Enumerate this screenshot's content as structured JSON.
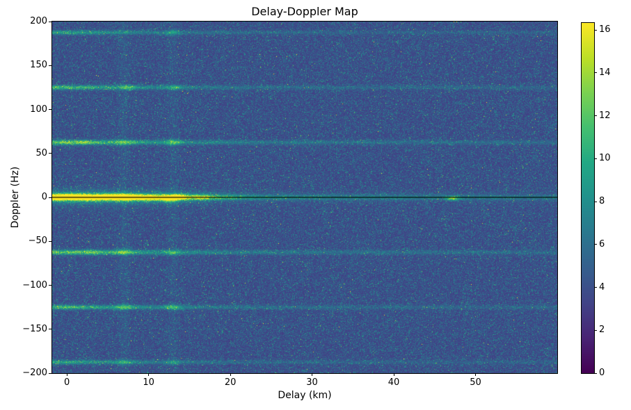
{
  "chart_data": {
    "type": "heatmap",
    "title": "Delay-Doppler Map",
    "xlabel": "Delay (km)",
    "ylabel": "Doppler (Hz)",
    "xlim": [
      -1.8,
      60
    ],
    "ylim": [
      -200,
      200
    ],
    "x_ticks": [
      0,
      10,
      20,
      30,
      40,
      50
    ],
    "y_ticks": [
      200,
      150,
      100,
      50,
      0,
      -50,
      -100,
      -150,
      -200
    ],
    "colorbar": {
      "vmin": 0,
      "vmax": 16.33,
      "ticks": [
        0,
        2,
        4,
        6,
        8,
        10,
        12,
        14,
        16
      ]
    },
    "colormap": {
      "name": "viridis",
      "stops": [
        [
          0.0,
          "#440154"
        ],
        [
          0.1,
          "#482475"
        ],
        [
          0.2,
          "#414487"
        ],
        [
          0.3,
          "#355f8d"
        ],
        [
          0.4,
          "#2a788e"
        ],
        [
          0.5,
          "#21918c"
        ],
        [
          0.6,
          "#22a884"
        ],
        [
          0.7,
          "#44bf70"
        ],
        [
          0.8,
          "#7ad151"
        ],
        [
          0.9,
          "#bddf26"
        ],
        [
          1.0,
          "#fde725"
        ]
      ]
    },
    "noise": {
      "base": 2.9,
      "exp_scale": 1.45,
      "seed": 42
    },
    "dc_line": {
      "doppler": 0,
      "color": "#000000"
    },
    "stripes": [
      {
        "kind": "main",
        "doppler": 0,
        "width_hz": 2.2,
        "peak": 12.5,
        "plateau_end_km": 15,
        "edge_km": 3,
        "tail": 3.0,
        "tail_decay_km": 40,
        "floor": 1.5
      },
      {
        "kind": "main",
        "doppler": 0,
        "width_hz": 5.5,
        "peak": 4.0,
        "plateau_end_km": 14,
        "edge_km": 3,
        "tail": 0.5,
        "tail_decay_km": 30,
        "floor": 0.2
      },
      {
        "kind": "harmonic",
        "doppler": 62.5,
        "width_hz": 1.8,
        "peak": 6.5,
        "decay_km": 12,
        "floor": 1.6
      },
      {
        "kind": "harmonic",
        "doppler": -62.5,
        "width_hz": 1.8,
        "peak": 6.5,
        "decay_km": 12,
        "floor": 1.6
      },
      {
        "kind": "harmonic",
        "doppler": 125,
        "width_hz": 1.7,
        "peak": 5.5,
        "decay_km": 11,
        "floor": 1.3
      },
      {
        "kind": "harmonic",
        "doppler": -125,
        "width_hz": 1.7,
        "peak": 5.5,
        "decay_km": 11,
        "floor": 1.3
      },
      {
        "kind": "harmonic",
        "doppler": 187.5,
        "width_hz": 1.6,
        "peak": 4.5,
        "decay_km": 10,
        "floor": 1.1
      },
      {
        "kind": "harmonic",
        "doppler": -187.5,
        "width_hz": 1.6,
        "peak": 4.5,
        "decay_km": 10,
        "floor": 1.1
      }
    ],
    "vertical_lines": [
      {
        "delay": 7,
        "amp": 0.55
      },
      {
        "delay": 13,
        "amp": 0.45
      }
    ],
    "hotspots": [
      {
        "delay": 0.5,
        "doppler": 1,
        "amp": 5.0,
        "sx": 1.2,
        "sy": 2.2
      },
      {
        "delay": 2.5,
        "doppler": -1,
        "amp": 4.0,
        "sx": 0.9,
        "sy": 2.0
      },
      {
        "delay": 4.8,
        "doppler": 1,
        "amp": 4.5,
        "sx": 0.8,
        "sy": 2.0
      },
      {
        "delay": 7.0,
        "doppler": 0,
        "amp": 6.0,
        "sx": 0.9,
        "sy": 2.5
      },
      {
        "delay": 9.5,
        "doppler": -1,
        "amp": 3.5,
        "sx": 0.7,
        "sy": 2.0
      },
      {
        "delay": 12.6,
        "doppler": -2,
        "amp": 7.0,
        "sx": 0.8,
        "sy": 2.5
      },
      {
        "delay": 13.6,
        "doppler": 1,
        "amp": 5.0,
        "sx": 0.6,
        "sy": 2.0
      },
      {
        "delay": 16.5,
        "doppler": 0,
        "amp": 3.0,
        "sx": 0.6,
        "sy": 2.0
      },
      {
        "delay": 47.2,
        "doppler": -1,
        "amp": 8.0,
        "sx": 0.5,
        "sy": 1.6
      },
      {
        "delay": 7.0,
        "doppler": 62.5,
        "amp": 3.5,
        "sx": 0.9,
        "sy": 2.2
      },
      {
        "delay": 13.0,
        "doppler": 62.5,
        "amp": 4.5,
        "sx": 0.7,
        "sy": 2.2
      },
      {
        "delay": 2.0,
        "doppler": 62.5,
        "amp": 2.5,
        "sx": 0.9,
        "sy": 2.0
      },
      {
        "delay": 7.0,
        "doppler": -62.5,
        "amp": 4.0,
        "sx": 0.9,
        "sy": 2.2
      },
      {
        "delay": 13.0,
        "doppler": -62.5,
        "amp": 3.5,
        "sx": 0.7,
        "sy": 2.0
      },
      {
        "delay": 3.0,
        "doppler": -62.5,
        "amp": 2.5,
        "sx": 0.8,
        "sy": 2.0
      },
      {
        "delay": 7.5,
        "doppler": 125,
        "amp": 3.0,
        "sx": 0.8,
        "sy": 2.0
      },
      {
        "delay": 13.2,
        "doppler": 125,
        "amp": 3.5,
        "sx": 0.6,
        "sy": 2.0
      },
      {
        "delay": 7.0,
        "doppler": -125,
        "amp": 3.5,
        "sx": 0.8,
        "sy": 2.2
      },
      {
        "delay": 13.0,
        "doppler": -125,
        "amp": 4.0,
        "sx": 0.7,
        "sy": 2.0
      },
      {
        "delay": 13.0,
        "doppler": 187.5,
        "amp": 3.0,
        "sx": 0.6,
        "sy": 2.0
      },
      {
        "delay": 7.0,
        "doppler": -187.5,
        "amp": 2.5,
        "sx": 0.8,
        "sy": 2.0
      },
      {
        "delay": 13.0,
        "doppler": -187.5,
        "amp": 2.5,
        "sx": 0.6,
        "sy": 2.0
      }
    ]
  }
}
